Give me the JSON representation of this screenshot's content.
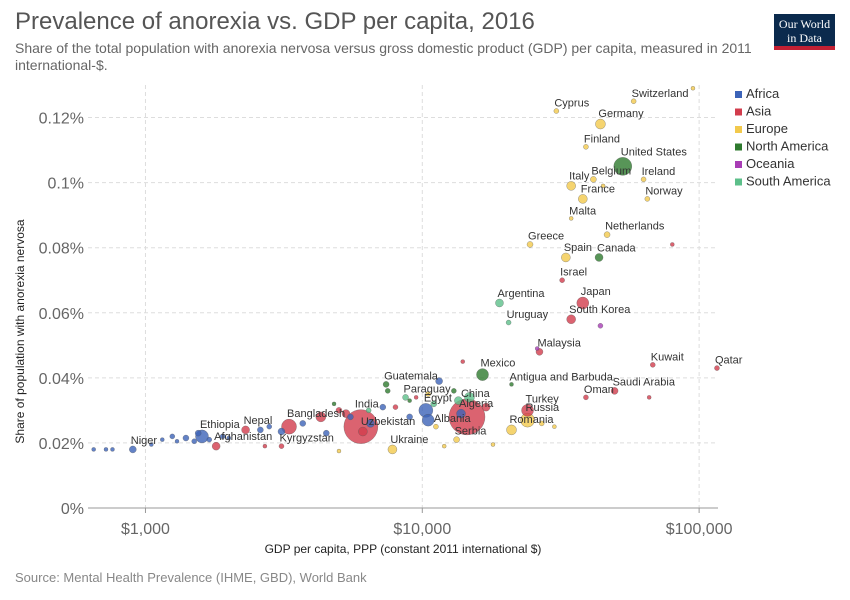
{
  "header": {
    "title": "Prevalence of anorexia vs. GDP per capita, 2016",
    "subtitle": "Share of the total population with anorexia nervosa versus gross domestic product (GDP) per capita, measured in 2011 international-$.",
    "logo_line1": "Our World",
    "logo_line2": "in Data"
  },
  "footer": {
    "source": "Source: Mental Health Prevalence (IHME, GBD), World Bank"
  },
  "colors": {
    "Africa": "#3c63b8",
    "Asia": "#d23c4c",
    "Europe": "#f2c94c",
    "North America": "#2e7a2e",
    "Oceania": "#a83db5",
    "South America": "#5cbf8a"
  },
  "chart_data": {
    "type": "scatter",
    "title": "Prevalence of anorexia vs. GDP per capita, 2016",
    "xlabel": "GDP per capita, PPP (constant 2011 international $)",
    "ylabel": "Share of population with anorexia nervosa",
    "xscale": "log",
    "xlim": [
      620,
      117000
    ],
    "ylim": [
      0,
      0.13
    ],
    "x_ticks": [
      {
        "value": 1000,
        "label": "$1,000"
      },
      {
        "value": 10000,
        "label": "$10,000"
      },
      {
        "value": 100000,
        "label": "$100,000"
      }
    ],
    "y_ticks": [
      {
        "value": 0,
        "label": "0%"
      },
      {
        "value": 0.02,
        "label": "0.02%"
      },
      {
        "value": 0.04,
        "label": "0.04%"
      },
      {
        "value": 0.06,
        "label": "0.06%"
      },
      {
        "value": 0.08,
        "label": "0.08%"
      },
      {
        "value": 0.1,
        "label": "0.1%"
      },
      {
        "value": 0.12,
        "label": "0.12%"
      }
    ],
    "grid": true,
    "legend_position": "right",
    "legend": [
      "Africa",
      "Asia",
      "Europe",
      "North America",
      "Oceania",
      "South America"
    ],
    "points": [
      {
        "name": "Switzerland",
        "region": "Europe",
        "x": 58000,
        "y": 0.125,
        "r": 2.5,
        "label": true
      },
      {
        "name": "Cyprus",
        "region": "Europe",
        "x": 30500,
        "y": 0.122,
        "r": 2.5,
        "label": true
      },
      {
        "name": "Germany",
        "region": "Europe",
        "x": 44000,
        "y": 0.118,
        "r": 5,
        "label": true
      },
      {
        "name": "Finland",
        "region": "Europe",
        "x": 39000,
        "y": 0.111,
        "r": 2.5,
        "label": true
      },
      {
        "name": "United States",
        "region": "North America",
        "x": 53000,
        "y": 0.105,
        "r": 9,
        "label": true
      },
      {
        "name": "Italy",
        "region": "Europe",
        "x": 34500,
        "y": 0.099,
        "r": 4.5,
        "label": true
      },
      {
        "name": "Belgium",
        "region": "Europe",
        "x": 41500,
        "y": 0.101,
        "r": 3,
        "label": true
      },
      {
        "name": "Ireland",
        "region": "Europe",
        "x": 63000,
        "y": 0.101,
        "r": 2.5,
        "label": true
      },
      {
        "name": "France",
        "region": "Europe",
        "x": 38000,
        "y": 0.095,
        "r": 4.5,
        "label": true
      },
      {
        "name": "Norway",
        "region": "Europe",
        "x": 65000,
        "y": 0.095,
        "r": 2.5,
        "label": true
      },
      {
        "name": "Malta",
        "region": "Europe",
        "x": 34500,
        "y": 0.089,
        "r": 2,
        "label": true
      },
      {
        "name": "Netherlands",
        "region": "Europe",
        "x": 46500,
        "y": 0.084,
        "r": 3,
        "label": true
      },
      {
        "name": "Greece",
        "region": "Europe",
        "x": 24500,
        "y": 0.081,
        "r": 3,
        "label": true
      },
      {
        "name": "Spain",
        "region": "Europe",
        "x": 33000,
        "y": 0.077,
        "r": 4.5,
        "label": true
      },
      {
        "name": "Canada",
        "region": "North America",
        "x": 43500,
        "y": 0.077,
        "r": 4,
        "label": true
      },
      {
        "name": "Israel",
        "region": "Asia",
        "x": 32000,
        "y": 0.07,
        "r": 2.5,
        "label": true
      },
      {
        "name": "Argentina",
        "region": "South America",
        "x": 19000,
        "y": 0.063,
        "r": 4,
        "label": true
      },
      {
        "name": "Japan",
        "region": "Asia",
        "x": 38000,
        "y": 0.063,
        "r": 6,
        "label": true
      },
      {
        "name": "South Korea",
        "region": "Asia",
        "x": 34500,
        "y": 0.058,
        "r": 4.5,
        "label": true
      },
      {
        "name": "Uruguay",
        "region": "South America",
        "x": 20500,
        "y": 0.057,
        "r": 2.5,
        "label": true
      },
      {
        "name": "Malaysia",
        "region": "Asia",
        "x": 26500,
        "y": 0.048,
        "r": 3.5,
        "label": true
      },
      {
        "name": "Kuwait",
        "region": "Asia",
        "x": 68000,
        "y": 0.044,
        "r": 2.5,
        "label": true
      },
      {
        "name": "Qatar",
        "region": "Asia",
        "x": 116000,
        "y": 0.043,
        "r": 2.5,
        "label": true
      },
      {
        "name": "Mexico",
        "region": "North America",
        "x": 16500,
        "y": 0.041,
        "r": 6,
        "label": true
      },
      {
        "name": "Guatemala",
        "region": "North America",
        "x": 7400,
        "y": 0.038,
        "r": 3,
        "label": true
      },
      {
        "name": "Antigua and Barbuda",
        "region": "North America",
        "x": 21000,
        "y": 0.038,
        "r": 2,
        "label": true
      },
      {
        "name": "Saudi Arabia",
        "region": "Asia",
        "x": 49500,
        "y": 0.036,
        "r": 3.5,
        "label": true
      },
      {
        "name": "Oman",
        "region": "Asia",
        "x": 39000,
        "y": 0.034,
        "r": 2.5,
        "label": true
      },
      {
        "name": "Paraguay",
        "region": "South America",
        "x": 8700,
        "y": 0.034,
        "r": 3,
        "label": true
      },
      {
        "name": "India",
        "region": "Asia",
        "x": 6000,
        "y": 0.025,
        "r": 17,
        "label": true
      },
      {
        "name": "China",
        "region": "Asia",
        "x": 14500,
        "y": 0.028,
        "r": 18,
        "label": true
      },
      {
        "name": "Egypt",
        "region": "Africa",
        "x": 10300,
        "y": 0.03,
        "r": 7,
        "label": true
      },
      {
        "name": "Algeria",
        "region": "Africa",
        "x": 13800,
        "y": 0.029,
        "r": 4.5,
        "label": true
      },
      {
        "name": "Turkey",
        "region": "Asia",
        "x": 24000,
        "y": 0.03,
        "r": 6,
        "label": true
      },
      {
        "name": "Bangladesh",
        "region": "Asia",
        "x": 3300,
        "y": 0.025,
        "r": 7.5,
        "label": true
      },
      {
        "name": "Nepal",
        "region": "Asia",
        "x": 2300,
        "y": 0.024,
        "r": 4,
        "label": true
      },
      {
        "name": "Ethiopia",
        "region": "Africa",
        "x": 1600,
        "y": 0.022,
        "r": 6.5,
        "label": true
      },
      {
        "name": "Afghanistan",
        "region": "Asia",
        "x": 1800,
        "y": 0.019,
        "r": 4,
        "label": true
      },
      {
        "name": "Uzbekistan",
        "region": "Asia",
        "x": 6100,
        "y": 0.0235,
        "r": 4.5,
        "label": true
      },
      {
        "name": "Albania",
        "region": "Europe",
        "x": 11200,
        "y": 0.025,
        "r": 2.5,
        "label": true
      },
      {
        "name": "Russia",
        "region": "Europe",
        "x": 24000,
        "y": 0.027,
        "r": 7,
        "label": true
      },
      {
        "name": "Romania",
        "region": "Europe",
        "x": 21000,
        "y": 0.024,
        "r": 5,
        "label": true
      },
      {
        "name": "Serbia",
        "region": "Europe",
        "x": 13300,
        "y": 0.021,
        "r": 3,
        "label": true
      },
      {
        "name": "Kyrgyzstan",
        "region": "Asia",
        "x": 3100,
        "y": 0.019,
        "r": 2.5,
        "label": true
      },
      {
        "name": "Ukraine",
        "region": "Europe",
        "x": 7800,
        "y": 0.018,
        "r": 4.5,
        "label": true
      },
      {
        "name": "Niger",
        "region": "Africa",
        "x": 900,
        "y": 0.018,
        "r": 3.5,
        "label": true
      },
      {
        "name": "",
        "region": "Africa",
        "x": 650,
        "y": 0.018,
        "r": 2,
        "label": false
      },
      {
        "name": "",
        "region": "Africa",
        "x": 720,
        "y": 0.018,
        "r": 2,
        "label": false
      },
      {
        "name": "",
        "region": "Africa",
        "x": 760,
        "y": 0.018,
        "r": 2,
        "label": false
      },
      {
        "name": "",
        "region": "Africa",
        "x": 1050,
        "y": 0.0195,
        "r": 2,
        "label": false
      },
      {
        "name": "",
        "region": "Africa",
        "x": 1150,
        "y": 0.021,
        "r": 2,
        "label": false
      },
      {
        "name": "",
        "region": "Africa",
        "x": 1250,
        "y": 0.022,
        "r": 2.5,
        "label": false
      },
      {
        "name": "",
        "region": "Africa",
        "x": 1300,
        "y": 0.0205,
        "r": 2,
        "label": false
      },
      {
        "name": "",
        "region": "Africa",
        "x": 1400,
        "y": 0.0215,
        "r": 3,
        "label": false
      },
      {
        "name": "",
        "region": "Africa",
        "x": 1500,
        "y": 0.0205,
        "r": 2.5,
        "label": false
      },
      {
        "name": "",
        "region": "Africa",
        "x": 1550,
        "y": 0.023,
        "r": 3,
        "label": false
      },
      {
        "name": "",
        "region": "Africa",
        "x": 1700,
        "y": 0.021,
        "r": 2.5,
        "label": false
      },
      {
        "name": "",
        "region": "Africa",
        "x": 1900,
        "y": 0.022,
        "r": 2.5,
        "label": false
      },
      {
        "name": "",
        "region": "Africa",
        "x": 2000,
        "y": 0.0215,
        "r": 2,
        "label": false
      },
      {
        "name": "",
        "region": "Africa",
        "x": 2600,
        "y": 0.024,
        "r": 3,
        "label": false
      },
      {
        "name": "",
        "region": "Africa",
        "x": 2800,
        "y": 0.025,
        "r": 2.5,
        "label": false
      },
      {
        "name": "",
        "region": "Africa",
        "x": 3100,
        "y": 0.0235,
        "r": 3.5,
        "label": false
      },
      {
        "name": "",
        "region": "Africa",
        "x": 3700,
        "y": 0.026,
        "r": 3,
        "label": false
      },
      {
        "name": "",
        "region": "Africa",
        "x": 4500,
        "y": 0.023,
        "r": 3,
        "label": false
      },
      {
        "name": "",
        "region": "Africa",
        "x": 5500,
        "y": 0.028,
        "r": 3,
        "label": false
      },
      {
        "name": "",
        "region": "Africa",
        "x": 6500,
        "y": 0.026,
        "r": 4,
        "label": false
      },
      {
        "name": "",
        "region": "Africa",
        "x": 7200,
        "y": 0.031,
        "r": 3,
        "label": false
      },
      {
        "name": "",
        "region": "Africa",
        "x": 9000,
        "y": 0.028,
        "r": 3,
        "label": false
      },
      {
        "name": "",
        "region": "Africa",
        "x": 10500,
        "y": 0.027,
        "r": 6,
        "label": false
      },
      {
        "name": "",
        "region": "Africa",
        "x": 11500,
        "y": 0.039,
        "r": 3.5,
        "label": false
      },
      {
        "name": "",
        "region": "Asia",
        "x": 5300,
        "y": 0.029,
        "r": 4,
        "label": false
      },
      {
        "name": "",
        "region": "Asia",
        "x": 5000,
        "y": 0.03,
        "r": 3,
        "label": false
      },
      {
        "name": "",
        "region": "Asia",
        "x": 4300,
        "y": 0.028,
        "r": 5,
        "label": false
      },
      {
        "name": "",
        "region": "Asia",
        "x": 8000,
        "y": 0.031,
        "r": 2.5,
        "label": false
      },
      {
        "name": "",
        "region": "Asia",
        "x": 9500,
        "y": 0.034,
        "r": 2,
        "label": false
      },
      {
        "name": "",
        "region": "Asia",
        "x": 17000,
        "y": 0.031,
        "r": 4,
        "label": false
      },
      {
        "name": "",
        "region": "Asia",
        "x": 14000,
        "y": 0.045,
        "r": 2,
        "label": false
      },
      {
        "name": "",
        "region": "Asia",
        "x": 66000,
        "y": 0.034,
        "r": 2,
        "label": false
      },
      {
        "name": "",
        "region": "Asia",
        "x": 80000,
        "y": 0.081,
        "r": 2,
        "label": false
      },
      {
        "name": "",
        "region": "Asia",
        "x": 2700,
        "y": 0.019,
        "r": 2,
        "label": false
      },
      {
        "name": "",
        "region": "Europe",
        "x": 10500,
        "y": 0.035,
        "r": 2.5,
        "label": false
      },
      {
        "name": "",
        "region": "Europe",
        "x": 12000,
        "y": 0.019,
        "r": 2,
        "label": false
      },
      {
        "name": "",
        "region": "Europe",
        "x": 18000,
        "y": 0.0195,
        "r": 2,
        "label": false
      },
      {
        "name": "",
        "region": "Europe",
        "x": 27000,
        "y": 0.026,
        "r": 2.5,
        "label": false
      },
      {
        "name": "",
        "region": "Europe",
        "x": 30000,
        "y": 0.025,
        "r": 2,
        "label": false
      },
      {
        "name": "",
        "region": "Europe",
        "x": 45000,
        "y": 0.099,
        "r": 2,
        "label": false
      },
      {
        "name": "",
        "region": "Europe",
        "x": 95000,
        "y": 0.129,
        "r": 2,
        "label": false
      },
      {
        "name": "",
        "region": "Europe",
        "x": 5000,
        "y": 0.0175,
        "r": 2,
        "label": false
      },
      {
        "name": "",
        "region": "North America",
        "x": 7500,
        "y": 0.036,
        "r": 2.5,
        "label": false
      },
      {
        "name": "",
        "region": "North America",
        "x": 9000,
        "y": 0.033,
        "r": 2,
        "label": false
      },
      {
        "name": "",
        "region": "North America",
        "x": 13000,
        "y": 0.036,
        "r": 2.5,
        "label": false
      },
      {
        "name": "",
        "region": "North America",
        "x": 4800,
        "y": 0.032,
        "r": 2,
        "label": false
      },
      {
        "name": "",
        "region": "Oceania",
        "x": 44000,
        "y": 0.056,
        "r": 2.5,
        "label": false
      },
      {
        "name": "",
        "region": "Oceania",
        "x": 26000,
        "y": 0.049,
        "r": 2,
        "label": false
      },
      {
        "name": "",
        "region": "South America",
        "x": 13500,
        "y": 0.033,
        "r": 4,
        "label": false
      },
      {
        "name": "",
        "region": "South America",
        "x": 11000,
        "y": 0.032,
        "r": 3,
        "label": false
      },
      {
        "name": "",
        "region": "South America",
        "x": 6400,
        "y": 0.03,
        "r": 2.5,
        "label": false
      },
      {
        "name": "",
        "region": "South America",
        "x": 14800,
        "y": 0.034,
        "r": 5,
        "label": false
      }
    ]
  }
}
